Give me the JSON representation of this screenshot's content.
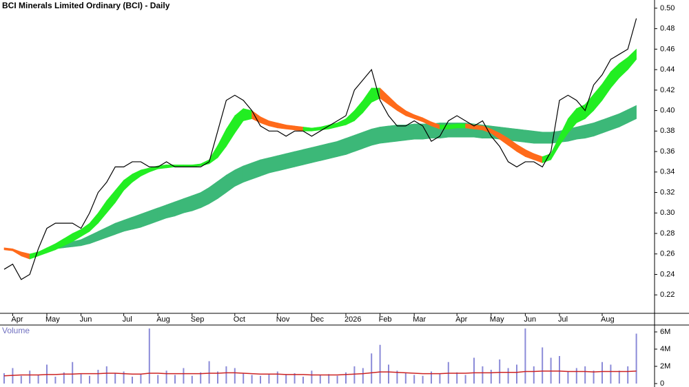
{
  "chart_data": [
    {
      "type": "price",
      "title": "BCI Minerals Limited Ordinary (BCI) - Daily",
      "categories": [
        null,
        "Apr",
        null,
        null,
        null,
        "May",
        null,
        null,
        null,
        "Jun",
        null,
        null,
        null,
        null,
        "Jul",
        null,
        null,
        null,
        "Aug",
        null,
        null,
        null,
        "Sep",
        null,
        null,
        null,
        null,
        "Oct",
        null,
        null,
        null,
        null,
        "Nov",
        null,
        null,
        null,
        "Dec",
        null,
        null,
        null,
        "2026",
        null,
        null,
        null,
        "Feb",
        null,
        null,
        null,
        "Mar",
        null,
        null,
        null,
        null,
        "Apr",
        null,
        null,
        null,
        "May",
        null,
        null,
        null,
        "Jun",
        null,
        null,
        null,
        "Jul",
        null,
        null,
        null,
        null,
        "Aug",
        null,
        null,
        null,
        null
      ],
      "close": [
        0.245,
        0.25,
        0.235,
        0.24,
        0.265,
        0.285,
        0.29,
        0.29,
        0.29,
        0.285,
        0.3,
        0.32,
        0.33,
        0.345,
        0.345,
        0.35,
        0.35,
        0.345,
        0.345,
        0.35,
        0.345,
        0.345,
        0.345,
        0.345,
        0.35,
        0.38,
        0.41,
        0.415,
        0.41,
        0.4,
        0.385,
        0.38,
        0.38,
        0.375,
        0.38,
        0.38,
        0.375,
        0.38,
        0.385,
        0.39,
        0.395,
        0.42,
        0.43,
        0.44,
        0.41,
        0.395,
        0.385,
        0.385,
        0.39,
        0.385,
        0.37,
        0.375,
        0.39,
        0.395,
        0.39,
        0.385,
        0.39,
        0.375,
        0.365,
        0.35,
        0.345,
        0.35,
        0.35,
        0.345,
        0.36,
        0.41,
        0.415,
        0.41,
        0.4,
        0.425,
        0.435,
        0.45,
        0.455,
        0.46,
        0.49
      ],
      "color": "#000000",
      "short_band": {
        "upper": [
          0.266,
          0.265,
          0.262,
          0.26,
          0.262,
          0.266,
          0.27,
          0.275,
          0.28,
          0.284,
          0.29,
          0.3,
          0.312,
          0.322,
          0.332,
          0.338,
          0.342,
          0.344,
          0.346,
          0.347,
          0.347,
          0.347,
          0.347,
          0.348,
          0.352,
          0.366,
          0.382,
          0.395,
          0.402,
          0.4,
          0.394,
          0.39,
          0.388,
          0.386,
          0.385,
          0.384,
          0.383,
          0.384,
          0.386,
          0.388,
          0.392,
          0.4,
          0.41,
          0.422,
          0.422,
          0.414,
          0.406,
          0.4,
          0.396,
          0.393,
          0.389,
          0.386,
          0.386,
          0.387,
          0.387,
          0.386,
          0.385,
          0.382,
          0.378,
          0.373,
          0.367,
          0.362,
          0.358,
          0.355,
          0.358,
          0.375,
          0.392,
          0.402,
          0.406,
          0.416,
          0.426,
          0.438,
          0.446,
          0.452,
          0.46
        ],
        "lower": [
          0.264,
          0.263,
          0.258,
          0.255,
          0.258,
          0.261,
          0.264,
          0.268,
          0.272,
          0.277,
          0.282,
          0.29,
          0.3,
          0.31,
          0.322,
          0.33,
          0.336,
          0.34,
          0.343,
          0.344,
          0.345,
          0.345,
          0.345,
          0.346,
          0.348,
          0.354,
          0.365,
          0.378,
          0.39,
          0.392,
          0.388,
          0.385,
          0.383,
          0.382,
          0.381,
          0.38,
          0.38,
          0.381,
          0.382,
          0.384,
          0.386,
          0.39,
          0.398,
          0.408,
          0.412,
          0.406,
          0.4,
          0.395,
          0.392,
          0.389,
          0.385,
          0.382,
          0.382,
          0.383,
          0.383,
          0.382,
          0.381,
          0.378,
          0.372,
          0.366,
          0.36,
          0.355,
          0.352,
          0.349,
          0.352,
          0.366,
          0.378,
          0.388,
          0.392,
          0.4,
          0.41,
          0.422,
          0.432,
          0.44,
          0.45
        ],
        "up_color": "#22ee22",
        "down_color": "#ff6a1a"
      },
      "long_band": {
        "upper": [
          null,
          null,
          null,
          null,
          null,
          0.266,
          0.268,
          0.27,
          0.272,
          0.274,
          0.278,
          0.282,
          0.286,
          0.29,
          0.293,
          0.296,
          0.299,
          0.302,
          0.305,
          0.308,
          0.311,
          0.314,
          0.317,
          0.32,
          0.325,
          0.331,
          0.337,
          0.342,
          0.346,
          0.349,
          0.352,
          0.354,
          0.356,
          0.358,
          0.36,
          0.362,
          0.364,
          0.366,
          0.368,
          0.37,
          0.373,
          0.376,
          0.379,
          0.382,
          0.384,
          0.385,
          0.386,
          0.386,
          0.387,
          0.387,
          0.387,
          0.388,
          0.388,
          0.388,
          0.388,
          0.387,
          0.386,
          0.385,
          0.384,
          0.383,
          0.382,
          0.381,
          0.38,
          0.379,
          0.379,
          0.38,
          0.382,
          0.384,
          0.386,
          0.388,
          0.391,
          0.394,
          0.397,
          0.401,
          0.405
        ],
        "lower": [
          null,
          null,
          null,
          null,
          null,
          0.264,
          0.265,
          0.266,
          0.267,
          0.268,
          0.27,
          0.273,
          0.276,
          0.279,
          0.282,
          0.284,
          0.286,
          0.289,
          0.292,
          0.295,
          0.297,
          0.3,
          0.302,
          0.305,
          0.309,
          0.314,
          0.32,
          0.326,
          0.33,
          0.333,
          0.336,
          0.339,
          0.341,
          0.343,
          0.345,
          0.347,
          0.349,
          0.351,
          0.353,
          0.355,
          0.357,
          0.36,
          0.363,
          0.366,
          0.368,
          0.369,
          0.37,
          0.371,
          0.372,
          0.372,
          0.373,
          0.373,
          0.374,
          0.374,
          0.374,
          0.374,
          0.373,
          0.373,
          0.372,
          0.371,
          0.37,
          0.369,
          0.368,
          0.368,
          0.368,
          0.369,
          0.37,
          0.372,
          0.373,
          0.375,
          0.378,
          0.381,
          0.384,
          0.388,
          0.392
        ],
        "color": "#3cb878"
      },
      "ylim": [
        0.202,
        0.508
      ],
      "yticks": [
        0.22,
        0.24,
        0.26,
        0.28,
        {
          "value": 0.3,
          "label": "0.30"
        },
        0.32,
        0.34,
        0.36,
        0.38,
        {
          "value": 0.4,
          "label": "0.40"
        },
        0.42,
        0.44,
        0.46,
        0.48,
        {
          "value": 0.5,
          "label": "0.50"
        }
      ]
    },
    {
      "type": "bar",
      "title": "Volume",
      "values": [
        1200000,
        1800000,
        900000,
        1500000,
        1000000,
        2200000,
        800000,
        1300000,
        2500000,
        1100000,
        900000,
        1600000,
        2000000,
        1200000,
        1400000,
        800000,
        1100000,
        6400000,
        1000000,
        1500000,
        1000000,
        1800000,
        900000,
        1300000,
        2600000,
        1400000,
        2000000,
        1800000,
        1200000,
        1000000,
        900000,
        1100000,
        1400000,
        1000000,
        1200000,
        800000,
        1500000,
        1000000,
        1100000,
        900000,
        1300000,
        2000000,
        1800000,
        3500000,
        4500000,
        2200000,
        1500000,
        1200000,
        1000000,
        900000,
        1400000,
        1100000,
        2500000,
        1300000,
        1000000,
        3000000,
        2000000,
        1600000,
        2800000,
        1800000,
        2200000,
        6400000,
        2000000,
        4200000,
        3000000,
        3200000,
        1400000,
        1800000,
        2000000,
        1500000,
        2500000,
        2200000,
        1500000,
        2000000,
        5800000
      ],
      "color": "#8a8ad8",
      "average": [
        900000,
        950000,
        1000000,
        1000000,
        1000000,
        1050000,
        1050000,
        1100000,
        1100000,
        1150000,
        1150000,
        1150000,
        1200000,
        1200000,
        1150000,
        1100000,
        1100000,
        1200000,
        1200000,
        1150000,
        1150000,
        1150000,
        1150000,
        1150000,
        1200000,
        1200000,
        1250000,
        1250000,
        1200000,
        1150000,
        1100000,
        1100000,
        1100000,
        1050000,
        1050000,
        1050000,
        1000000,
        1000000,
        1000000,
        1000000,
        1050000,
        1100000,
        1150000,
        1250000,
        1350000,
        1350000,
        1300000,
        1250000,
        1200000,
        1150000,
        1150000,
        1150000,
        1200000,
        1200000,
        1200000,
        1250000,
        1250000,
        1250000,
        1300000,
        1300000,
        1300000,
        1400000,
        1400000,
        1450000,
        1450000,
        1450000,
        1400000,
        1400000,
        1400000,
        1350000,
        1400000,
        1400000,
        1400000,
        1400000,
        1450000
      ],
      "average_color": "#cc2222",
      "ylim": [
        0,
        6800000
      ],
      "yticks": [
        0,
        {
          "value": 2000000,
          "label": "2M"
        },
        {
          "value": 4000000,
          "label": "4M"
        },
        {
          "value": 6000000,
          "label": "6M"
        }
      ]
    }
  ]
}
